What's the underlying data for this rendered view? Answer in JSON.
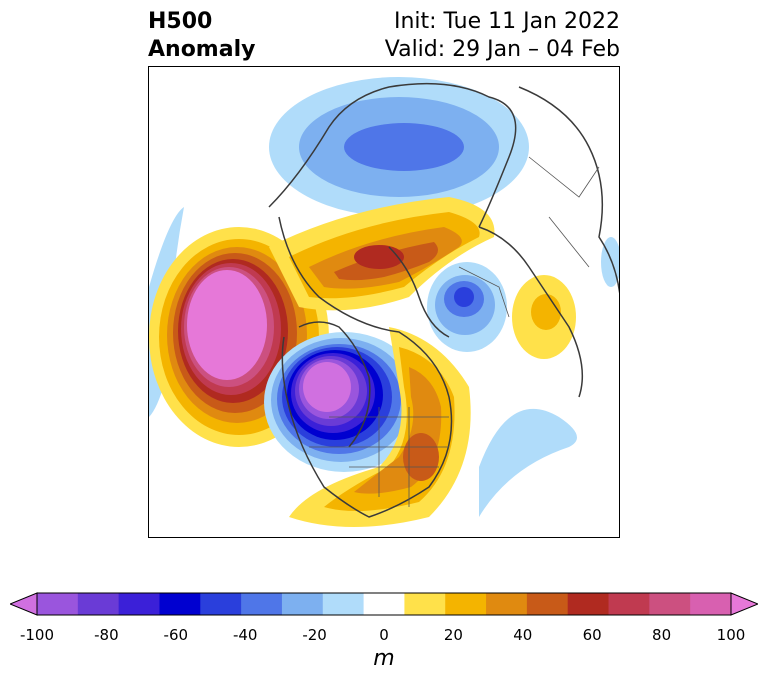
{
  "title": {
    "left_line1": "H500",
    "left_line2": "Anomaly",
    "right_line1": "Init: Tue 11 Jan 2022",
    "right_line2": "Valid: 29 Jan – 04 Feb"
  },
  "colorbar": {
    "units": "m",
    "tick_labels": [
      "-100",
      "-80",
      "-60",
      "-40",
      "-20",
      "0",
      "20",
      "40",
      "60",
      "80",
      "100"
    ],
    "colors": [
      "#d070e0",
      "#9a55dd",
      "#6a3bd6",
      "#3b20d8",
      "#0000d0",
      "#2a3fdc",
      "#4f76e8",
      "#7db0f0",
      "#b0dcfa",
      "#ffffff",
      "#ffe14a",
      "#f4b400",
      "#e08a10",
      "#c85a18",
      "#b02a20",
      "#c03a50",
      "#cc5080",
      "#d860b0",
      "#e678d8"
    ]
  }
}
